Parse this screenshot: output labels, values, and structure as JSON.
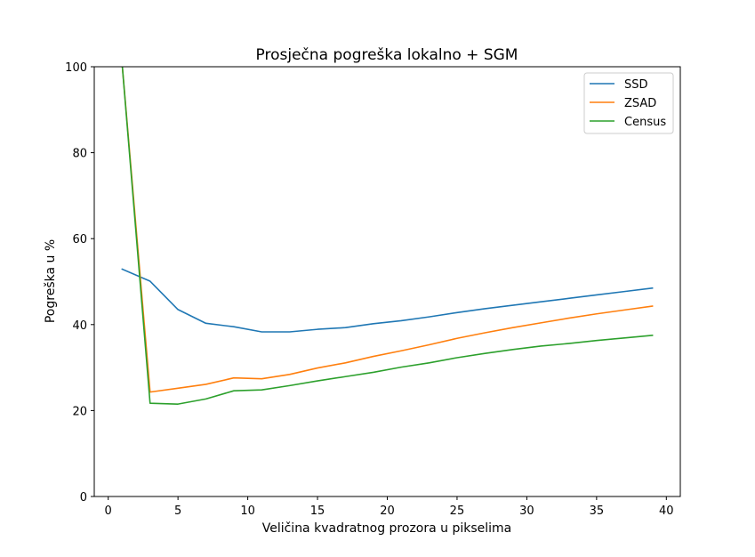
{
  "chart_data": {
    "type": "line",
    "title": "Prosječna pogreška lokalno + SGM",
    "xlabel": "Veličina kvadratnog prozora u pikselima",
    "ylabel": "Pogreška u %",
    "xlim": [
      -1,
      41
    ],
    "ylim": [
      0,
      100
    ],
    "xticks": [
      0,
      5,
      10,
      15,
      20,
      25,
      30,
      35,
      40
    ],
    "yticks": [
      0,
      20,
      40,
      60,
      80,
      100
    ],
    "grid": false,
    "legend_position": "top-right",
    "x": [
      1,
      3,
      5,
      7,
      9,
      11,
      13,
      15,
      17,
      19,
      21,
      23,
      25,
      27,
      29,
      31,
      33,
      35,
      37,
      39
    ],
    "series": [
      {
        "name": "SSD",
        "color": "#1f77b4",
        "values": [
          52.9,
          50.1,
          43.5,
          40.3,
          39.5,
          38.3,
          38.3,
          38.9,
          39.3,
          40.2,
          40.9,
          41.8,
          42.8,
          43.7,
          44.5,
          45.3,
          46.1,
          46.9,
          47.7,
          48.5
        ]
      },
      {
        "name": "ZSAD",
        "color": "#ff7f0e",
        "values": [
          100.5,
          24.3,
          25.2,
          26.1,
          27.6,
          27.4,
          28.4,
          29.9,
          31.1,
          32.6,
          33.9,
          35.3,
          36.8,
          38.1,
          39.3,
          40.4,
          41.5,
          42.5,
          43.4,
          44.3
        ]
      },
      {
        "name": "Census",
        "color": "#2ca02c",
        "values": [
          100.5,
          21.7,
          21.5,
          22.7,
          24.6,
          24.8,
          25.8,
          26.9,
          27.9,
          28.9,
          30.1,
          31.1,
          32.3,
          33.3,
          34.2,
          35.0,
          35.6,
          36.3,
          36.9,
          37.5
        ]
      }
    ]
  }
}
